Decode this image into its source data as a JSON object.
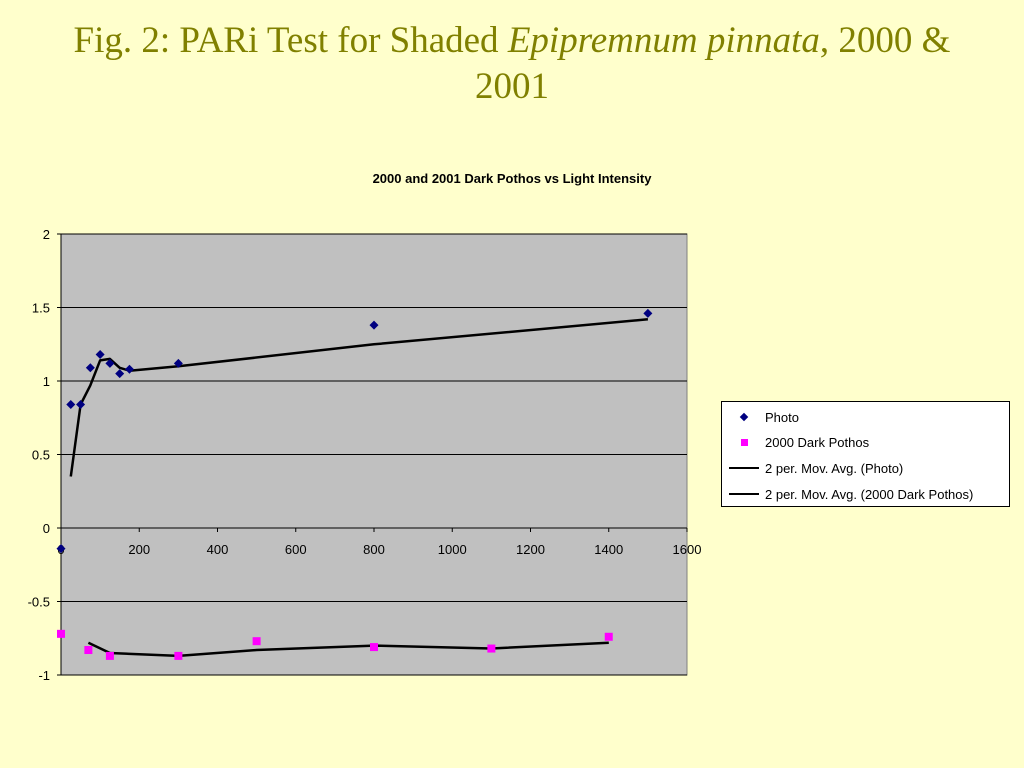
{
  "slide": {
    "title_part1": "Fig. 2: PARi Test for Shaded ",
    "title_italic": "Epipremnum pinnata",
    "title_part2": ", 2000 &",
    "title_line2": "2001"
  },
  "colors": {
    "background": "#ffffcc",
    "title": "#808000",
    "plot_area": "#c0c0c0",
    "photo_marker": "#000080",
    "dark_pothos_marker": "#ff00ff",
    "trendline": "#000000"
  },
  "chart_data": {
    "type": "scatter",
    "title": "2000 and 2001 Dark Pothos vs Light Intensity",
    "xlabel": "",
    "ylabel": "",
    "xlim": [
      0,
      1600
    ],
    "ylim": [
      -1,
      2
    ],
    "x_ticks": [
      "0",
      "200",
      "400",
      "600",
      "800",
      "1000",
      "1200",
      "1400",
      "1600"
    ],
    "y_ticks": [
      "2",
      "1.5",
      "1",
      "0.5",
      "0",
      "-0.5",
      "-1"
    ],
    "grid": "horizontal",
    "legend_position": "right",
    "series": [
      {
        "name": "Photo",
        "marker": "diamond",
        "color": "#000080",
        "points": [
          [
            0,
            -0.14
          ],
          [
            25,
            0.84
          ],
          [
            50,
            0.84
          ],
          [
            75,
            1.09
          ],
          [
            100,
            1.18
          ],
          [
            125,
            1.12
          ],
          [
            150,
            1.05
          ],
          [
            175,
            1.08
          ],
          [
            300,
            1.12
          ],
          [
            800,
            1.38
          ],
          [
            1500,
            1.46
          ]
        ]
      },
      {
        "name": "2000 Dark Pothos",
        "marker": "square",
        "color": "#ff00ff",
        "points": [
          [
            0,
            -0.72
          ],
          [
            70,
            -0.83
          ],
          [
            125,
            -0.87
          ],
          [
            300,
            -0.87
          ],
          [
            500,
            -0.77
          ],
          [
            800,
            -0.81
          ],
          [
            1100,
            -0.82
          ],
          [
            1400,
            -0.74
          ]
        ]
      },
      {
        "name": "2 per. Mov. Avg. (Photo)",
        "type": "trendline",
        "color": "#000000",
        "points": [
          [
            25,
            0.35
          ],
          [
            50,
            0.84
          ],
          [
            75,
            0.97
          ],
          [
            100,
            1.14
          ],
          [
            125,
            1.15
          ],
          [
            150,
            1.09
          ],
          [
            175,
            1.07
          ],
          [
            300,
            1.1
          ],
          [
            800,
            1.25
          ],
          [
            1500,
            1.42
          ]
        ]
      },
      {
        "name": "2 per. Mov. Avg. (2000 Dark Pothos)",
        "type": "trendline",
        "color": "#000000",
        "points": [
          [
            70,
            -0.78
          ],
          [
            125,
            -0.85
          ],
          [
            300,
            -0.87
          ],
          [
            500,
            -0.83
          ],
          [
            800,
            -0.8
          ],
          [
            1100,
            -0.82
          ],
          [
            1400,
            -0.78
          ]
        ]
      }
    ]
  }
}
